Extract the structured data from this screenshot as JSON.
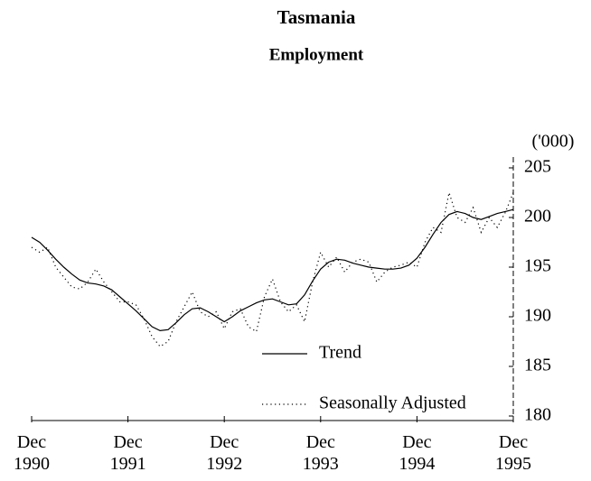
{
  "chart_data": {
    "type": "line",
    "title": "Tasmania",
    "subtitle": "Employment",
    "y_unit": "('000)",
    "categories": [
      "Dec 1990",
      null,
      null,
      null,
      null,
      null,
      null,
      null,
      null,
      null,
      null,
      null,
      "Dec 1991",
      null,
      null,
      null,
      null,
      null,
      null,
      null,
      null,
      null,
      null,
      null,
      "Dec 1992",
      null,
      null,
      null,
      null,
      null,
      null,
      null,
      null,
      null,
      null,
      null,
      "Dec 1993",
      null,
      null,
      null,
      null,
      null,
      null,
      null,
      null,
      null,
      null,
      null,
      "Dec 1994",
      null,
      null,
      null,
      null,
      null,
      null,
      null,
      null,
      null,
      null,
      null,
      "Dec 1995"
    ],
    "series": [
      {
        "name": "Trend",
        "color": "#000000",
        "style": "solid",
        "values": [
          198.0,
          197.5,
          196.7,
          195.8,
          195.0,
          194.3,
          193.7,
          193.4,
          193.3,
          193.1,
          192.7,
          192.0,
          191.3,
          190.6,
          189.8,
          189.0,
          188.6,
          188.7,
          189.4,
          190.2,
          190.8,
          190.9,
          190.5,
          190.0,
          189.5,
          190.0,
          190.6,
          191.0,
          191.4,
          191.7,
          191.8,
          191.5,
          191.2,
          191.3,
          192.2,
          193.6,
          194.8,
          195.5,
          195.8,
          195.7,
          195.4,
          195.2,
          195.0,
          194.9,
          194.8,
          194.8,
          194.9,
          195.2,
          195.9,
          197.0,
          198.3,
          199.5,
          200.3,
          200.6,
          200.4,
          200.0,
          199.8,
          200.1,
          200.4,
          200.6,
          200.8
        ]
      },
      {
        "name": "Seasonally Adjusted",
        "color": "#000000",
        "style": "dotted",
        "values": [
          197.0,
          196.5,
          197.0,
          195.0,
          194.0,
          193.0,
          192.8,
          193.5,
          194.8,
          193.5,
          192.5,
          191.5,
          191.5,
          191.2,
          189.8,
          188.0,
          187.0,
          187.5,
          189.5,
          191.0,
          192.5,
          190.5,
          190.0,
          190.5,
          188.8,
          190.5,
          190.8,
          189.0,
          188.5,
          192.0,
          193.8,
          191.5,
          190.5,
          191.2,
          189.5,
          193.5,
          196.5,
          195.0,
          196.0,
          194.5,
          195.5,
          195.8,
          195.5,
          193.5,
          194.5,
          195.0,
          195.2,
          195.5,
          195.0,
          197.5,
          199.0,
          198.5,
          202.5,
          200.0,
          199.5,
          201.0,
          198.5,
          200.0,
          199.0,
          200.5,
          202.5
        ]
      }
    ],
    "ylim": [
      180,
      205
    ],
    "yticks": [
      180,
      185,
      190,
      195,
      200,
      205
    ],
    "legend": "lower right"
  }
}
